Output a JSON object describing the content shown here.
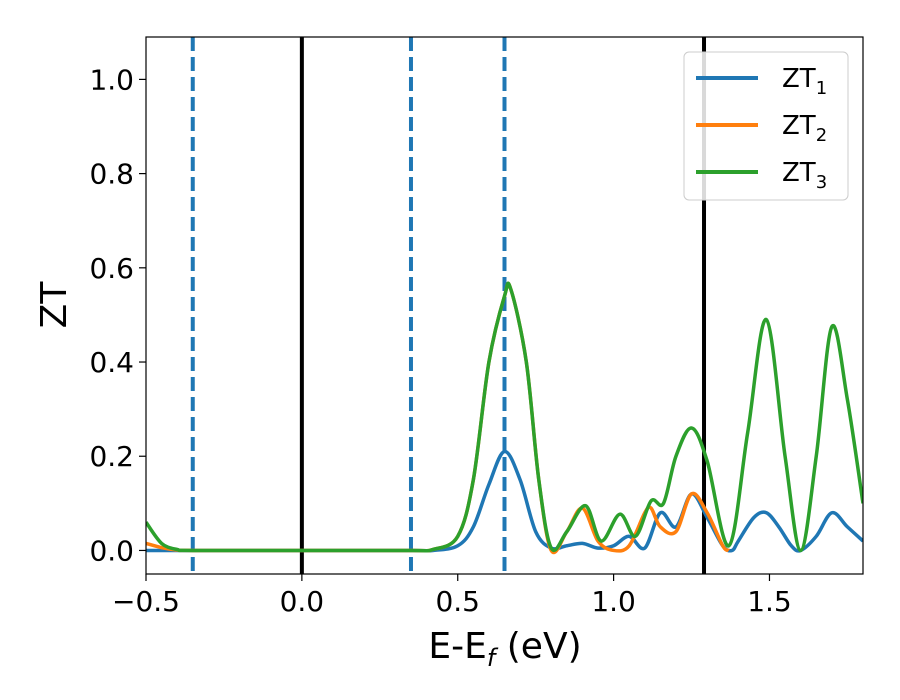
{
  "chart_data": {
    "type": "line",
    "xlabel_main": "E-E",
    "xlabel_sub": "f",
    "xlabel_unit": " (eV)",
    "ylabel": "ZT",
    "xlim": [
      -0.5,
      1.8
    ],
    "ylim": [
      -0.05,
      1.09
    ],
    "xticks": [
      -0.5,
      0.0,
      0.5,
      1.0,
      1.5
    ],
    "xtick_labels": [
      "−0.5",
      "0.0",
      "0.5",
      "1.0",
      "1.5"
    ],
    "yticks": [
      0.0,
      0.2,
      0.4,
      0.6,
      0.8,
      1.0
    ],
    "ytick_labels": [
      "0.0",
      "0.2",
      "0.4",
      "0.6",
      "0.8",
      "1.0"
    ],
    "legend_position": "top-right",
    "vlines_solid": [
      0.0,
      1.29
    ],
    "vlines_dashed": [
      -0.35,
      0.35,
      0.65
    ],
    "solid_line_color": "#000000",
    "dashed_line_color": "#1f77b4",
    "series": [
      {
        "name_main": "ZT",
        "name_sub": "1",
        "color": "#1f77b4",
        "x": [
          -0.5,
          -0.45,
          -0.4,
          -0.35,
          0.0,
          0.35,
          0.42,
          0.5,
          0.55,
          0.6,
          0.65,
          0.7,
          0.75,
          0.8,
          0.85,
          0.9,
          0.95,
          1.0,
          1.05,
          1.1,
          1.15,
          1.2,
          1.25,
          1.3,
          1.35,
          1.38,
          1.4,
          1.45,
          1.49,
          1.53,
          1.57,
          1.6,
          1.65,
          1.7,
          1.75,
          1.8
        ],
        "y": [
          0.0,
          0.0,
          0.0,
          0.0,
          0.0,
          0.0,
          0.0,
          0.01,
          0.05,
          0.14,
          0.21,
          0.15,
          0.04,
          0.005,
          0.01,
          0.015,
          0.005,
          0.01,
          0.03,
          0.005,
          0.08,
          0.05,
          0.12,
          0.07,
          0.01,
          0.0,
          0.02,
          0.07,
          0.08,
          0.05,
          0.01,
          0.0,
          0.03,
          0.08,
          0.05,
          0.02
        ]
      },
      {
        "name_main": "ZT",
        "name_sub": "2",
        "color": "#ff7f0e",
        "x": [
          -0.5,
          -0.45,
          -0.4,
          -0.35,
          0.0,
          0.35,
          0.42,
          0.5,
          0.55,
          0.6,
          0.65,
          0.67,
          0.72,
          0.76,
          0.8,
          0.85,
          0.9,
          0.95,
          1.0,
          1.05,
          1.1,
          1.12,
          1.15,
          1.2,
          1.25,
          1.3,
          1.35,
          1.37
        ],
        "y": [
          0.015,
          0.006,
          0.001,
          0.0,
          0.0,
          0.0,
          0.002,
          0.03,
          0.15,
          0.4,
          0.54,
          0.555,
          0.4,
          0.15,
          0.0,
          0.04,
          0.09,
          0.02,
          0.0,
          0.01,
          0.08,
          0.09,
          0.05,
          0.04,
          0.12,
          0.08,
          0.01,
          0.0
        ]
      },
      {
        "name_main": "ZT",
        "name_sub": "3",
        "color": "#2ca02c",
        "x": [
          -0.5,
          -0.45,
          -0.4,
          -0.35,
          0.0,
          0.35,
          0.42,
          0.5,
          0.55,
          0.6,
          0.65,
          0.67,
          0.72,
          0.76,
          0.8,
          0.85,
          0.91,
          0.96,
          1.02,
          1.07,
          1.12,
          1.16,
          1.2,
          1.25,
          1.3,
          1.37,
          1.43,
          1.49,
          1.55,
          1.6,
          1.65,
          1.7,
          1.75,
          1.8
        ],
        "y": [
          0.06,
          0.015,
          0.002,
          0.0,
          0.0,
          0.0,
          0.002,
          0.03,
          0.15,
          0.4,
          0.54,
          0.555,
          0.4,
          0.15,
          0.005,
          0.04,
          0.095,
          0.02,
          0.077,
          0.03,
          0.105,
          0.1,
          0.2,
          0.26,
          0.19,
          0.01,
          0.25,
          0.49,
          0.2,
          0.0,
          0.2,
          0.475,
          0.32,
          0.1
        ]
      }
    ]
  }
}
